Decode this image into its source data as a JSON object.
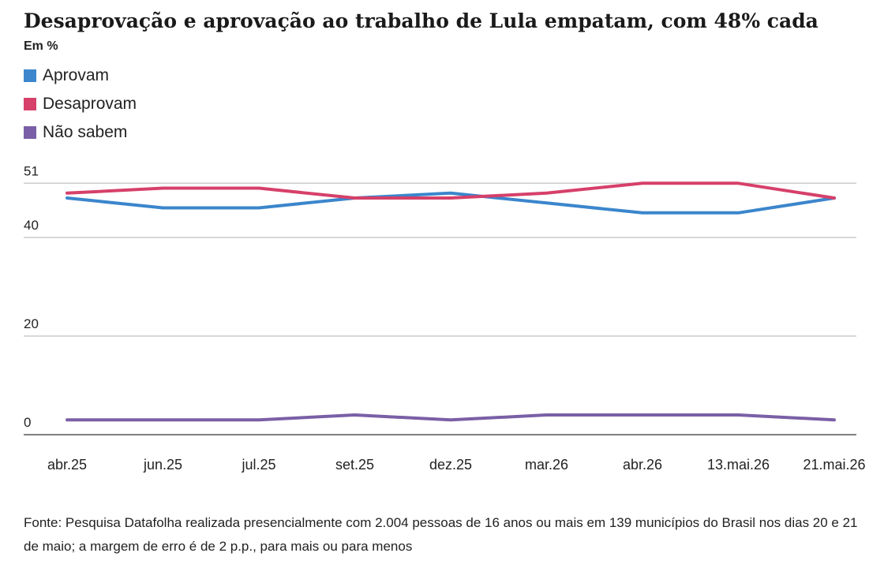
{
  "header": {
    "title": "Desaprovação e aprovação ao trabalho de Lula empatam, com 48% cada",
    "unit_label": "Em %"
  },
  "legend": [
    {
      "label": "Aprovam",
      "color": "#3b86cc"
    },
    {
      "label": "Desaprovam",
      "color": "#d6406a"
    },
    {
      "label": "Não sabem",
      "color": "#7a5fa6"
    }
  ],
  "footer": {
    "source": "Fonte: Pesquisa Datafolha realizada presencialmente com 2.004 pessoas de 16 anos ou mais em 139 municípios do Brasil nos dias 20 e 21 de maio; a margem de erro é de 2 p.p., para mais ou para menos"
  },
  "chart_data": {
    "type": "line",
    "title": "Desaprovação e aprovação ao trabalho de Lula empatam, com 48% cada",
    "ylabel": "Em %",
    "xlabel": "",
    "categories": [
      "abr.25",
      "jun.25",
      "jul.25",
      "set.25",
      "dez.25",
      "mar.26",
      "abr.26",
      "13.mai.26",
      "21.mai.26"
    ],
    "yticks": [
      0,
      20,
      40,
      51
    ],
    "ylim": [
      0,
      51
    ],
    "grid": true,
    "legend_position": "top-left",
    "series": [
      {
        "name": "Aprovam",
        "color": "#3b86cc",
        "values": [
          48,
          46,
          46,
          48,
          49,
          47,
          45,
          45,
          48
        ]
      },
      {
        "name": "Desaprovam",
        "color": "#d6406a",
        "values": [
          49,
          50,
          50,
          48,
          48,
          49,
          51,
          51,
          48
        ]
      },
      {
        "name": "Não sabem",
        "color": "#7a5fa6",
        "values": [
          3,
          3,
          3,
          4,
          3,
          4,
          4,
          4,
          3
        ]
      }
    ]
  }
}
